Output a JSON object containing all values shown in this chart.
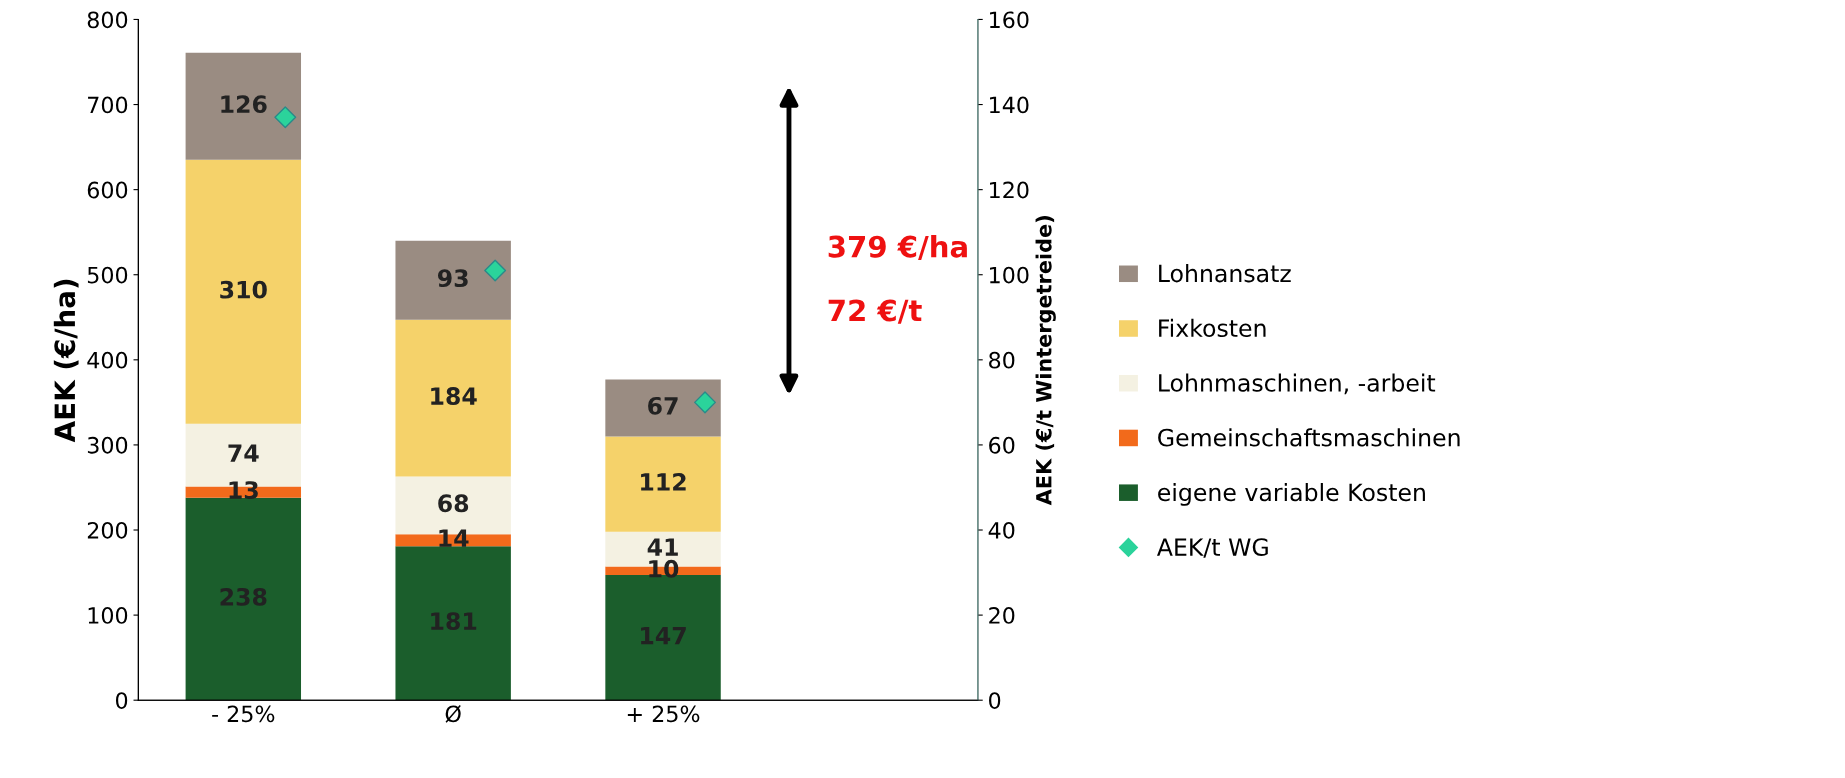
{
  "chart_data": {
    "type": "bar",
    "stacked": true,
    "categories": [
      "- 25%",
      "Ø",
      "+ 25%",
      null
    ],
    "ylabel": "AEK (€/ha)",
    "y2label": "AEK (€/t Wintergetreide)",
    "ylim": [
      0,
      800
    ],
    "yticks": [
      0,
      100,
      200,
      300,
      400,
      500,
      600,
      700,
      800
    ],
    "y2lim": [
      0,
      160
    ],
    "y2ticks": [
      0,
      20,
      40,
      60,
      80,
      100,
      120,
      140,
      160
    ],
    "series": [
      {
        "name": "eigene variable Kosten",
        "color": "#1b5e2c",
        "values": [
          238,
          181,
          147,
          null
        ],
        "value_labels": [
          "238",
          "181",
          "147",
          null
        ]
      },
      {
        "name": "Gemeinschaftsmaschinen",
        "color": "#f26a1b",
        "values": [
          13,
          14,
          10,
          null
        ],
        "value_labels": [
          "13",
          "14",
          "10",
          null
        ]
      },
      {
        "name": "Lohnmaschinen, -arbeit",
        "color": "#f4f1e2",
        "values": [
          74,
          68,
          41,
          null
        ],
        "value_labels": [
          "74",
          "68",
          "41",
          null
        ]
      },
      {
        "name": "Fixkosten",
        "color": "#f5d26a",
        "values": [
          310,
          184,
          112,
          null
        ],
        "value_labels": [
          "310",
          "184",
          "112",
          null
        ]
      },
      {
        "name": "Lohnansatz",
        "color": "#9a8c82",
        "values": [
          126,
          93,
          67,
          null
        ],
        "value_labels": [
          "126",
          "93",
          "67",
          null
        ]
      },
      {
        "name": "AEK/t WG",
        "type": "scatter",
        "axis": "y2",
        "marker": "diamond",
        "color": "#2bd39b",
        "values": [
          137,
          101,
          70,
          null
        ]
      }
    ],
    "legend": "right",
    "grid": false,
    "annotations": [
      "379 €/ha",
      "72 €/t"
    ]
  }
}
